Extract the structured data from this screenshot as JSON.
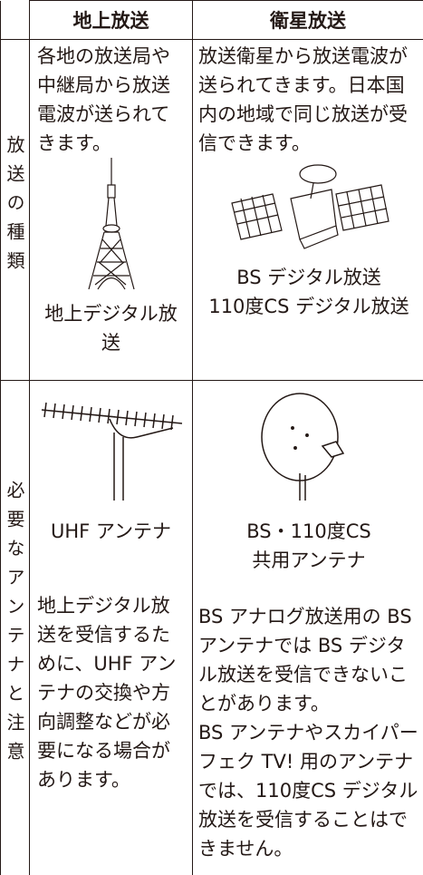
{
  "table": {
    "headers": [
      "地上放送",
      "衛星放送"
    ],
    "rows": [
      {
        "label": "放送の種類",
        "cells": [
          {
            "text": "各地の放送局や中継局から放送電波が送られてきます。",
            "caption": "地上デジタル放送"
          },
          {
            "text": "放送衛星から放送電波が送られてきます。日本国内の地域で同じ放送が受信できます。",
            "caption": [
              "BS デジタル放送",
              "110度CS デジタル放送"
            ]
          }
        ]
      },
      {
        "label": "必要なアンテナと注意",
        "cells": [
          {
            "caption": "UHF アンテナ",
            "note": "地上デジタル放送を受信するために、UHF アンテナの交換や方向調整などが必要になる場合があります。"
          },
          {
            "caption": [
              "BS・110度CS",
              "共用アンテナ"
            ],
            "notes": [
              "BS アナログ放送用の BS アンテナでは BS デジタル放送を受信できないことがあります。",
              "BS アンテナやスカイパーフェク TV! 用のアンテナでは、110度CS デジタル放送を受信することはできません。"
            ]
          }
        ]
      }
    ]
  }
}
